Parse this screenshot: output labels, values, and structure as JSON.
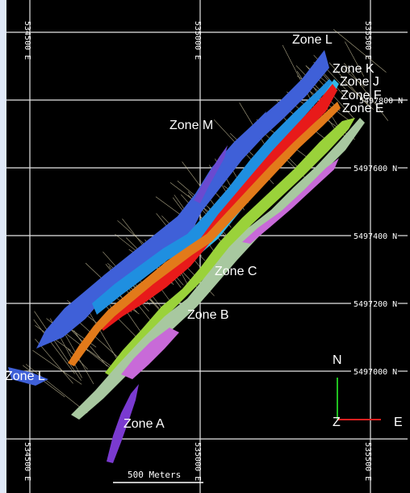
{
  "map": {
    "colors": {
      "background": "#000000",
      "grid": "#e6e6e6",
      "drill": "#d8cfa8",
      "label_text": "#ffffff",
      "north_arrow": "#20c020",
      "east_arrow": "#e02020",
      "left_margin": "#dfe8f7"
    },
    "zone_labels": {
      "L_top": "Zone L",
      "K": "Zone K",
      "J": "Zone J",
      "F": "Zone F",
      "E": "Zone E",
      "M": "Zone M",
      "C": "Zone C",
      "B": "Zone B",
      "L_bottom": "Zone L",
      "A": "Zone A"
    },
    "easting_labels": {
      "e1_top": "534500 E",
      "e2_top": "535000 E",
      "e3_top": "535500 E",
      "e1_bottom": "534500 E",
      "e2_bottom": "535000 E",
      "e3_bottom": "535500 E"
    },
    "northing_labels": {
      "n1": "5497800 N",
      "n2": "5497600 N",
      "n3": "5497400 N",
      "n4": "5497200 N",
      "n5": "5497000 N"
    },
    "scale_bar": {
      "label": "500 Meters"
    },
    "axes": {
      "north": "N",
      "east": "E",
      "vertical": "Z"
    },
    "zone_colors": {
      "L": "#3f60d8",
      "K": "#1f8fe0",
      "J": "#34b8e8",
      "F": "#e81a1a",
      "orange": "#e27a1a",
      "E": "#9ad23a",
      "C": "#a8c8a0",
      "pink": "#c86ad8",
      "A": "#7a3ad0",
      "M": "#6a4ad0"
    }
  }
}
